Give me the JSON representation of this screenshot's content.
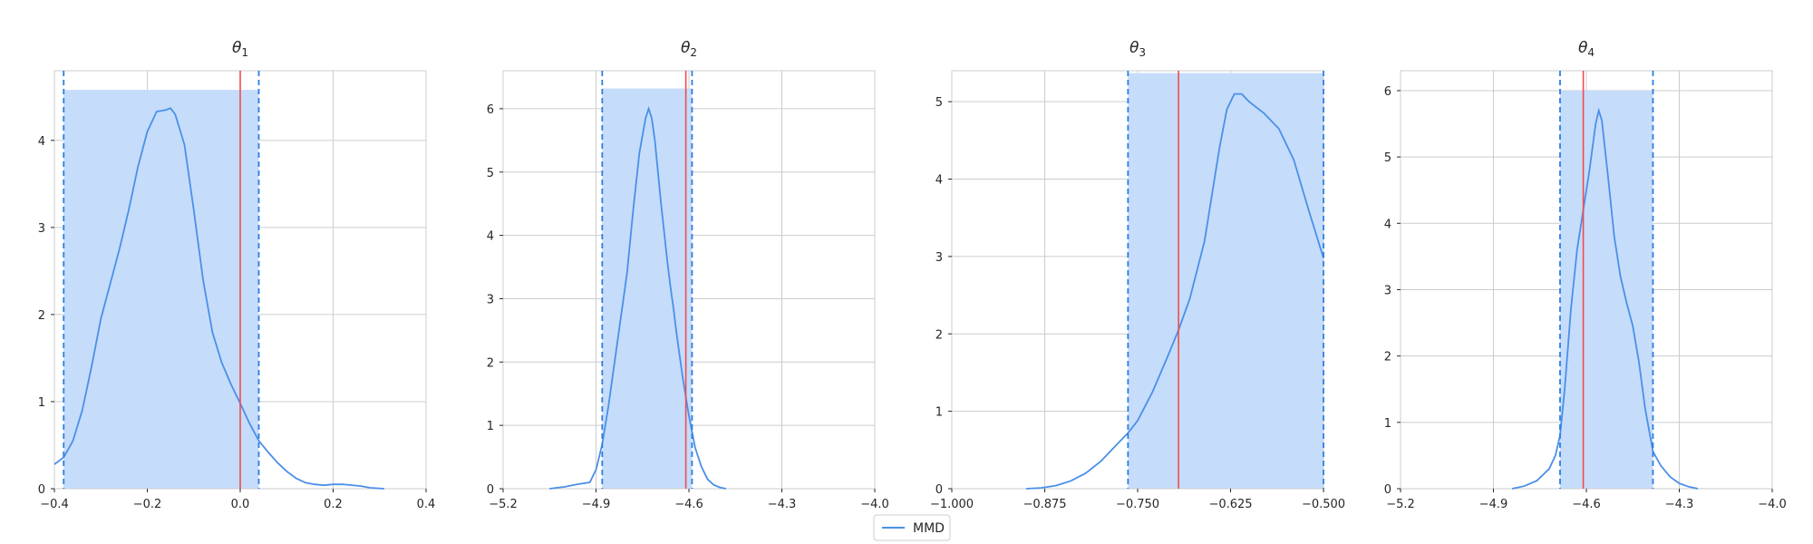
{
  "colors": {
    "kde_line": "#4a90e8",
    "credible_band": "#c6dcfb",
    "credible_bounds": "#2b7fe0",
    "true_value": "#f24b4b",
    "grid": "#cccccc"
  },
  "legend": {
    "placement": "bottom-center",
    "entries": [
      {
        "label": "MMD",
        "color": "#4a90e8"
      }
    ]
  },
  "chart_data": [
    {
      "type": "line",
      "title": {
        "main": "θ",
        "sub": "1"
      },
      "xlim": [
        -0.4,
        0.4
      ],
      "ylim": [
        0,
        4.8
      ],
      "xticks": [
        -0.4,
        -0.2,
        0.0,
        0.2,
        0.4
      ],
      "xtick_labels": [
        "−0.4",
        "−0.2",
        "0.0",
        "0.2",
        "0.4"
      ],
      "yticks": [
        0,
        1,
        2,
        3,
        4
      ],
      "ytick_labels": [
        "0",
        "1",
        "2",
        "3",
        "4"
      ],
      "grid": true,
      "band": {
        "x0": -0.38,
        "x1": 0.04,
        "height": 4.58
      },
      "ci_lower": -0.38,
      "ci_upper": 0.04,
      "true_value": 0.0,
      "series": [
        {
          "name": "MMD",
          "x": [
            -0.4,
            -0.38,
            -0.36,
            -0.34,
            -0.32,
            -0.3,
            -0.28,
            -0.26,
            -0.24,
            -0.22,
            -0.2,
            -0.18,
            -0.16,
            -0.15,
            -0.14,
            -0.12,
            -0.1,
            -0.08,
            -0.06,
            -0.04,
            -0.02,
            0.0,
            0.02,
            0.04,
            0.06,
            0.08,
            0.1,
            0.12,
            0.14,
            0.16,
            0.18,
            0.2,
            0.22,
            0.24,
            0.26,
            0.28,
            0.31
          ],
          "y": [
            0.28,
            0.36,
            0.55,
            0.9,
            1.4,
            1.95,
            2.35,
            2.75,
            3.2,
            3.7,
            4.1,
            4.33,
            4.35,
            4.37,
            4.3,
            3.95,
            3.2,
            2.4,
            1.8,
            1.45,
            1.2,
            0.98,
            0.75,
            0.55,
            0.42,
            0.3,
            0.2,
            0.12,
            0.07,
            0.05,
            0.04,
            0.05,
            0.05,
            0.04,
            0.03,
            0.01,
            0.0
          ]
        }
      ]
    },
    {
      "type": "line",
      "title": {
        "main": "θ",
        "sub": "2"
      },
      "xlim": [
        -5.2,
        -4.0
      ],
      "ylim": [
        0,
        6.6
      ],
      "xticks": [
        -5.2,
        -4.9,
        -4.6,
        -4.3,
        -4.0
      ],
      "xtick_labels": [
        "−5.2",
        "−4.9",
        "−4.6",
        "−4.3",
        "−4.0"
      ],
      "yticks": [
        0,
        1,
        2,
        3,
        4,
        5,
        6
      ],
      "ytick_labels": [
        "0",
        "1",
        "2",
        "3",
        "4",
        "5",
        "6"
      ],
      "grid": true,
      "band": {
        "x0": -4.88,
        "x1": -4.59,
        "height": 6.32
      },
      "ci_lower": -4.88,
      "ci_upper": -4.59,
      "true_value": -4.61,
      "series": [
        {
          "name": "MMD",
          "x": [
            -5.05,
            -5.0,
            -4.96,
            -4.92,
            -4.9,
            -4.88,
            -4.86,
            -4.84,
            -4.82,
            -4.8,
            -4.78,
            -4.76,
            -4.74,
            -4.73,
            -4.72,
            -4.71,
            -4.7,
            -4.69,
            -4.68,
            -4.67,
            -4.66,
            -4.65,
            -4.64,
            -4.62,
            -4.6,
            -4.58,
            -4.56,
            -4.54,
            -4.52,
            -4.5,
            -4.48
          ],
          "y": [
            0.0,
            0.03,
            0.07,
            0.1,
            0.3,
            0.7,
            1.3,
            2.0,
            2.7,
            3.4,
            4.4,
            5.3,
            5.85,
            6.0,
            5.85,
            5.5,
            5.0,
            4.5,
            4.05,
            3.6,
            3.2,
            2.85,
            2.45,
            1.75,
            1.15,
            0.65,
            0.35,
            0.15,
            0.06,
            0.02,
            0.0
          ]
        }
      ]
    },
    {
      "type": "line",
      "title": {
        "main": "θ",
        "sub": "3"
      },
      "xlim": [
        -1.0,
        -0.5
      ],
      "ylim": [
        0,
        5.4
      ],
      "xticks": [
        -1.0,
        -0.875,
        -0.75,
        -0.625,
        -0.5
      ],
      "xtick_labels": [
        "−1.000",
        "−0.875",
        "−0.750",
        "−0.625",
        "−0.500"
      ],
      "yticks": [
        0,
        1,
        2,
        3,
        4,
        5
      ],
      "ytick_labels": [
        "0",
        "1",
        "2",
        "3",
        "4",
        "5"
      ],
      "grid": true,
      "band": {
        "x0": -0.763,
        "x1": -0.5,
        "height": 5.37
      },
      "ci_lower": -0.763,
      "ci_upper": -0.5,
      "true_value": -0.695,
      "series": [
        {
          "name": "MMD",
          "x": [
            -0.9,
            -0.88,
            -0.86,
            -0.84,
            -0.82,
            -0.8,
            -0.78,
            -0.763,
            -0.75,
            -0.73,
            -0.71,
            -0.695,
            -0.68,
            -0.66,
            -0.65,
            -0.64,
            -0.63,
            -0.62,
            -0.61,
            -0.6,
            -0.58,
            -0.56,
            -0.54,
            -0.52,
            -0.5
          ],
          "y": [
            0.0,
            0.01,
            0.04,
            0.1,
            0.2,
            0.35,
            0.55,
            0.72,
            0.88,
            1.25,
            1.7,
            2.05,
            2.45,
            3.2,
            3.8,
            4.4,
            4.9,
            5.1,
            5.1,
            5.0,
            4.85,
            4.65,
            4.25,
            3.6,
            2.98
          ]
        }
      ]
    },
    {
      "type": "line",
      "title": {
        "main": "θ",
        "sub": "4"
      },
      "xlim": [
        -5.2,
        -4.0
      ],
      "ylim": [
        0,
        6.3
      ],
      "xticks": [
        -5.2,
        -4.9,
        -4.6,
        -4.3,
        -4.0
      ],
      "xtick_labels": [
        "−5.2",
        "−4.9",
        "−4.6",
        "−4.3",
        "−4.0"
      ],
      "yticks": [
        0,
        1,
        2,
        3,
        4,
        5,
        6
      ],
      "ytick_labels": [
        "0",
        "1",
        "2",
        "3",
        "4",
        "5",
        "6"
      ],
      "grid": true,
      "band": {
        "x0": -4.685,
        "x1": -4.385,
        "height": 6.0
      },
      "ci_lower": -4.685,
      "ci_upper": -4.385,
      "true_value": -4.61,
      "series": [
        {
          "name": "MMD",
          "x": [
            -4.84,
            -4.8,
            -4.76,
            -4.72,
            -4.7,
            -4.685,
            -4.67,
            -4.65,
            -4.63,
            -4.61,
            -4.59,
            -4.57,
            -4.56,
            -4.55,
            -4.53,
            -4.51,
            -4.49,
            -4.47,
            -4.45,
            -4.43,
            -4.41,
            -4.385,
            -4.36,
            -4.33,
            -4.3,
            -4.27,
            -4.24
          ],
          "y": [
            0.0,
            0.04,
            0.12,
            0.3,
            0.5,
            0.8,
            1.5,
            2.7,
            3.6,
            4.2,
            4.8,
            5.5,
            5.7,
            5.55,
            4.7,
            3.8,
            3.2,
            2.8,
            2.45,
            1.9,
            1.2,
            0.56,
            0.35,
            0.18,
            0.08,
            0.03,
            0.0
          ]
        }
      ]
    }
  ]
}
